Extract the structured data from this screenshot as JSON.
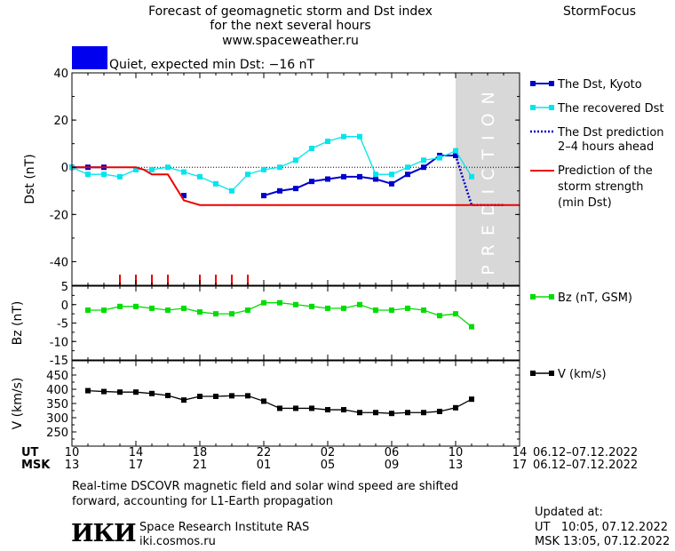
{
  "header": {
    "title_line1": "Forecast of geomagnetic storm and Dst index",
    "title_line2": "for the next several hours",
    "url": "www.spaceweather.ru",
    "brand": "StormFocus"
  },
  "status": {
    "color": "#0000ee",
    "text": "Quiet, expected min Dst: −16 nT"
  },
  "prediction_label": "PREDICTION",
  "legend": {
    "dst": "The Dst, Kyoto",
    "recovered": "The recovered Dst",
    "prediction_line1": "The Dst prediction",
    "prediction_line2": "2–4 hours ahead",
    "strength_line1": "Prediction of the",
    "strength_line2": "storm strength",
    "strength_line3": "(min Dst)",
    "bz": "Bz (nT, GSM)",
    "v": "V (km/s)"
  },
  "time_axis": {
    "ut_label": "UT",
    "msk_label": "MSK",
    "ut_ticks": [
      "10",
      "14",
      "18",
      "22",
      "02",
      "06",
      "10",
      "14"
    ],
    "msk_ticks": [
      "13",
      "17",
      "21",
      "01",
      "05",
      "09",
      "13",
      "17"
    ],
    "date_range_ut": "06.12–07.12.2022",
    "date_range_msk": "06.12–07.12.2022"
  },
  "footer": {
    "note_line1": "Real-time DSCOVR magnetic field and solar wind speed are shifted",
    "note_line2": "forward, accounting for L1-Earth propagation",
    "logo_text": "ИКИ",
    "institute": "Space Research Institute RAS",
    "site": "iki.cosmos.ru",
    "updated_label": "Updated at:",
    "updated_ut": "UT   10:05, 07.12.2022",
    "updated_msk": "MSK 13:05, 07.12.2022"
  },
  "chart_data": [
    {
      "type": "line",
      "ylabel": "Dst (nT)",
      "ylim": [
        -50,
        40
      ],
      "yticks": [
        40,
        20,
        0,
        -20,
        -40
      ],
      "xlim": [
        0,
        28
      ],
      "x_unit": "hours since 06.12.2022 10:00 UT",
      "prediction_region": [
        24,
        28
      ],
      "series": [
        {
          "name": "The Dst, Kyoto",
          "color": "#0000cc",
          "marker": "square",
          "x": [
            0,
            1,
            2,
            7,
            12,
            13,
            14,
            15,
            16,
            17,
            18,
            19,
            20,
            21,
            22,
            23,
            24
          ],
          "y": [
            0,
            0,
            0,
            -12,
            -12,
            -10,
            -9,
            -6,
            -5,
            -4,
            -4,
            -5,
            -7,
            -3,
            0,
            5,
            5
          ]
        },
        {
          "name": "The recovered Dst",
          "color": "#00e5ee",
          "marker": "square",
          "x": [
            0,
            1,
            2,
            3,
            4,
            5,
            6,
            7,
            8,
            9,
            10,
            11,
            12,
            13,
            14,
            15,
            16,
            17,
            18,
            19,
            20,
            21,
            22,
            23,
            24,
            25
          ],
          "y": [
            0,
            -3,
            -3,
            -4,
            -1,
            -1,
            0,
            -2,
            -4,
            -7,
            -10,
            -3,
            -1,
            0,
            3,
            8,
            11,
            13,
            13,
            -3,
            -3,
            0,
            3,
            4,
            7,
            -4
          ]
        },
        {
          "name": "The Dst prediction 2–4 hours ahead",
          "color": "#0000cc",
          "style": "dotted",
          "x": [
            24,
            25,
            26,
            27
          ],
          "y": [
            5,
            -16,
            -16,
            -16
          ]
        },
        {
          "name": "Prediction of the storm strength (min Dst)",
          "color": "#ee0000",
          "style": "step",
          "x": [
            0,
            4,
            4.5,
            5,
            6,
            7,
            8,
            28
          ],
          "y": [
            0,
            0,
            -1,
            -3,
            -3,
            -14,
            -16,
            -16
          ]
        }
      ],
      "markers": {
        "name": "storm onset ticks",
        "color": "#ee0000",
        "x": [
          3,
          4,
          5,
          6,
          8,
          9,
          10,
          11
        ]
      }
    },
    {
      "type": "line",
      "ylabel": "Bz (nT)",
      "ylim": [
        -15,
        5
      ],
      "yticks": [
        5,
        0,
        -5,
        -10,
        -15
      ],
      "xlim": [
        0,
        28
      ],
      "series": [
        {
          "name": "Bz (nT, GSM)",
          "color": "#00dd00",
          "marker": "square",
          "x": [
            1,
            2,
            3,
            4,
            5,
            6,
            7,
            8,
            9,
            10,
            11,
            12,
            13,
            14,
            15,
            16,
            17,
            18,
            19,
            20,
            21,
            22,
            23,
            24,
            25
          ],
          "y": [
            -1.5,
            -1.5,
            -0.5,
            -0.5,
            -1,
            -1.5,
            -1,
            -2,
            -2.5,
            -2.5,
            -1.5,
            0.5,
            0.5,
            0,
            -0.5,
            -1,
            -1,
            0,
            -1.5,
            -1.5,
            -1,
            -1.5,
            -3,
            -2.5,
            -6
          ]
        }
      ]
    },
    {
      "type": "line",
      "ylabel": "V (km/s)",
      "ylim": [
        200,
        500
      ],
      "yticks": [
        450,
        400,
        350,
        300,
        250
      ],
      "xlim": [
        0,
        28
      ],
      "series": [
        {
          "name": "V (km/s)",
          "color": "#000000",
          "marker": "square",
          "x": [
            1,
            2,
            3,
            4,
            5,
            6,
            7,
            8,
            9,
            10,
            11,
            12,
            13,
            14,
            15,
            16,
            17,
            18,
            19,
            20,
            21,
            22,
            23,
            24,
            25
          ],
          "y": [
            395,
            392,
            390,
            390,
            385,
            378,
            362,
            375,
            375,
            377,
            377,
            358,
            333,
            333,
            333,
            328,
            328,
            318,
            318,
            315,
            318,
            318,
            322,
            335,
            365
          ]
        }
      ]
    }
  ]
}
